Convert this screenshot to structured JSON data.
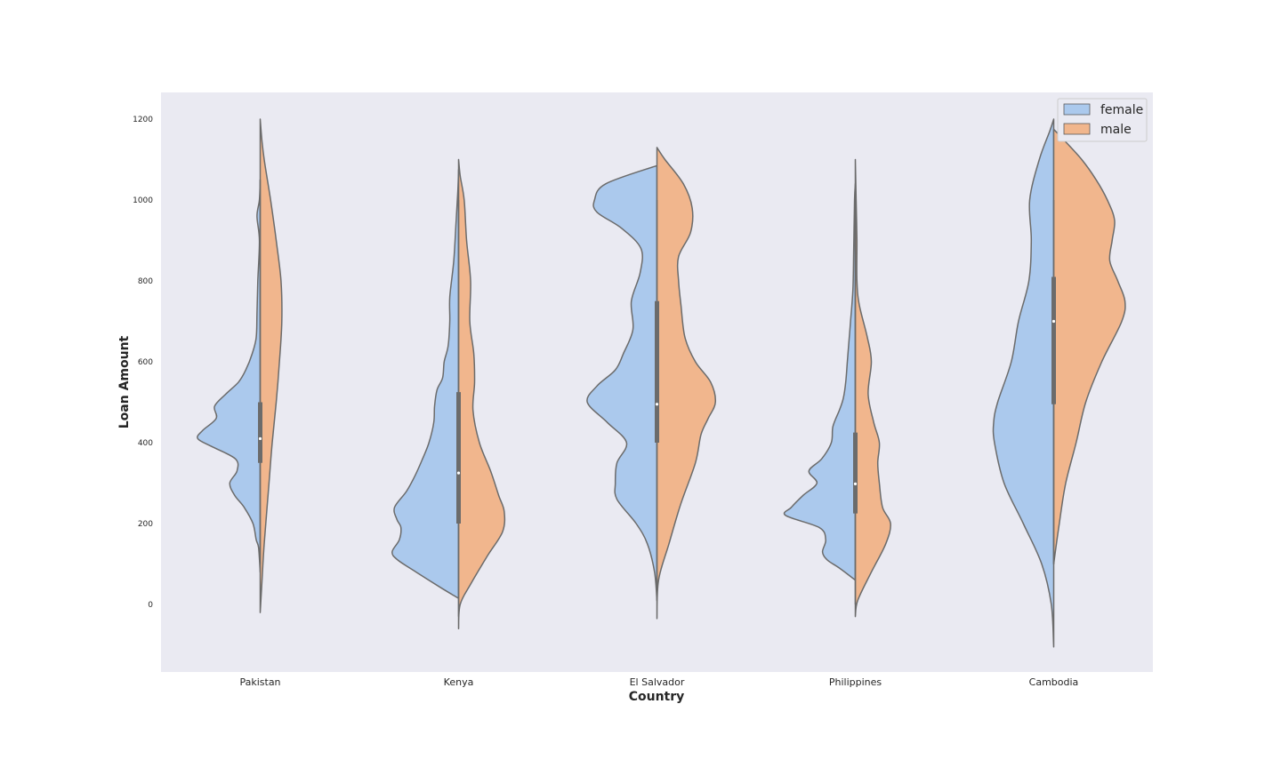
{
  "chart_data": {
    "type": "violin",
    "split": true,
    "xlabel": "Country",
    "ylabel": "Loan Amount",
    "ylim": [
      -165,
      1265
    ],
    "yticks": [
      0,
      200,
      400,
      600,
      800,
      1000,
      1200
    ],
    "grid": false,
    "legend_position": "top-right",
    "categories": [
      "Pakistan",
      "Kenya",
      "El Salvador",
      "Philippines",
      "Cambodia"
    ],
    "hue": [
      {
        "name": "female",
        "color": "#abc9ed"
      },
      {
        "name": "male",
        "color": "#f1b68d"
      }
    ],
    "violins": [
      {
        "category": "Pakistan",
        "box": {
          "q1": 350,
          "median": 410,
          "q3": 500,
          "whisker_low": 100,
          "whisker_high": 1050
        },
        "female": {
          "ymin": 80,
          "ymax": 1050,
          "density": [
            [
              80,
              0
            ],
            [
              140,
              0.02
            ],
            [
              160,
              0.05
            ],
            [
              200,
              0.09
            ],
            [
              240,
              0.2
            ],
            [
              270,
              0.32
            ],
            [
              300,
              0.38
            ],
            [
              330,
              0.29
            ],
            [
              360,
              0.31
            ],
            [
              390,
              0.6
            ],
            [
              410,
              0.78
            ],
            [
              430,
              0.72
            ],
            [
              460,
              0.55
            ],
            [
              490,
              0.57
            ],
            [
              520,
              0.43
            ],
            [
              550,
              0.27
            ],
            [
              580,
              0.18
            ],
            [
              620,
              0.1
            ],
            [
              660,
              0.05
            ],
            [
              720,
              0.04
            ],
            [
              800,
              0.03
            ],
            [
              900,
              0.01
            ],
            [
              960,
              0.04
            ],
            [
              1000,
              0.01
            ],
            [
              1050,
              0
            ]
          ]
        },
        "male": {
          "ymin": -20,
          "ymax": 1200,
          "density": [
            [
              -20,
              0
            ],
            [
              50,
              0.02
            ],
            [
              150,
              0.05
            ],
            [
              300,
              0.11
            ],
            [
              400,
              0.15
            ],
            [
              500,
              0.2
            ],
            [
              600,
              0.24
            ],
            [
              700,
              0.27
            ],
            [
              800,
              0.26
            ],
            [
              900,
              0.2
            ],
            [
              1000,
              0.13
            ],
            [
              1100,
              0.05
            ],
            [
              1150,
              0.02
            ],
            [
              1200,
              0
            ]
          ]
        }
      },
      {
        "category": "Kenya",
        "box": {
          "q1": 200,
          "median": 325,
          "q3": 525,
          "whisker_low": -30,
          "whisker_high": 1000
        },
        "female": {
          "ymin": 15,
          "ymax": 1075,
          "density": [
            [
              15,
              0
            ],
            [
              40,
              0.21
            ],
            [
              80,
              0.53
            ],
            [
              110,
              0.76
            ],
            [
              130,
              0.83
            ],
            [
              160,
              0.74
            ],
            [
              190,
              0.72
            ],
            [
              210,
              0.77
            ],
            [
              240,
              0.8
            ],
            [
              280,
              0.65
            ],
            [
              320,
              0.54
            ],
            [
              360,
              0.45
            ],
            [
              400,
              0.37
            ],
            [
              450,
              0.31
            ],
            [
              490,
              0.3
            ],
            [
              530,
              0.27
            ],
            [
              560,
              0.2
            ],
            [
              600,
              0.18
            ],
            [
              640,
              0.13
            ],
            [
              700,
              0.11
            ],
            [
              760,
              0.11
            ],
            [
              850,
              0.06
            ],
            [
              950,
              0.03
            ],
            [
              1020,
              0.01
            ],
            [
              1075,
              0
            ]
          ]
        },
        "male": {
          "ymin": -60,
          "ymax": 1100,
          "density": [
            [
              -60,
              0
            ],
            [
              0,
              0.02
            ],
            [
              50,
              0.15
            ],
            [
              120,
              0.36
            ],
            [
              180,
              0.55
            ],
            [
              230,
              0.57
            ],
            [
              270,
              0.5
            ],
            [
              330,
              0.4
            ],
            [
              400,
              0.26
            ],
            [
              480,
              0.18
            ],
            [
              550,
              0.2
            ],
            [
              620,
              0.19
            ],
            [
              700,
              0.14
            ],
            [
              800,
              0.15
            ],
            [
              900,
              0.1
            ],
            [
              1000,
              0.07
            ],
            [
              1060,
              0.02
            ],
            [
              1100,
              0
            ]
          ]
        }
      },
      {
        "category": "El Salvador",
        "box": {
          "q1": 400,
          "median": 495,
          "q3": 750,
          "whisker_low": 10,
          "whisker_high": 1000
        },
        "female": {
          "ymin": 10,
          "ymax": 1085,
          "density": [
            [
              10,
              0
            ],
            [
              80,
              0.03
            ],
            [
              150,
              0.12
            ],
            [
              200,
              0.26
            ],
            [
              260,
              0.5
            ],
            [
              300,
              0.52
            ],
            [
              350,
              0.5
            ],
            [
              400,
              0.38
            ],
            [
              450,
              0.62
            ],
            [
              500,
              0.87
            ],
            [
              540,
              0.75
            ],
            [
              580,
              0.52
            ],
            [
              620,
              0.42
            ],
            [
              680,
              0.3
            ],
            [
              750,
              0.32
            ],
            [
              820,
              0.21
            ],
            [
              880,
              0.2
            ],
            [
              930,
              0.44
            ],
            [
              970,
              0.75
            ],
            [
              1000,
              0.78
            ],
            [
              1040,
              0.64
            ],
            [
              1085,
              0
            ]
          ]
        },
        "male": {
          "ymin": -35,
          "ymax": 1130,
          "density": [
            [
              -35,
              0
            ],
            [
              60,
              0.02
            ],
            [
              150,
              0.15
            ],
            [
              250,
              0.3
            ],
            [
              350,
              0.48
            ],
            [
              420,
              0.55
            ],
            [
              460,
              0.64
            ],
            [
              500,
              0.73
            ],
            [
              550,
              0.67
            ],
            [
              600,
              0.48
            ],
            [
              660,
              0.35
            ],
            [
              740,
              0.3
            ],
            [
              800,
              0.27
            ],
            [
              860,
              0.27
            ],
            [
              920,
              0.42
            ],
            [
              980,
              0.44
            ],
            [
              1040,
              0.33
            ],
            [
              1100,
              0.1
            ],
            [
              1130,
              0
            ]
          ]
        }
      },
      {
        "category": "Philippines",
        "box": {
          "q1": 225,
          "median": 298,
          "q3": 425,
          "whisker_low": 0,
          "whisker_high": 1000
        },
        "female": {
          "ymin": 60,
          "ymax": 1040,
          "density": [
            [
              60,
              0
            ],
            [
              90,
              0.2
            ],
            [
              110,
              0.35
            ],
            [
              130,
              0.41
            ],
            [
              160,
              0.37
            ],
            [
              190,
              0.45
            ],
            [
              220,
              0.87
            ],
            [
              240,
              0.8
            ],
            [
              270,
              0.65
            ],
            [
              300,
              0.48
            ],
            [
              330,
              0.58
            ],
            [
              360,
              0.42
            ],
            [
              400,
              0.3
            ],
            [
              440,
              0.28
            ],
            [
              480,
              0.2
            ],
            [
              510,
              0.15
            ],
            [
              550,
              0.12
            ],
            [
              600,
              0.1
            ],
            [
              650,
              0.08
            ],
            [
              700,
              0.06
            ],
            [
              780,
              0.03
            ],
            [
              880,
              0.02
            ],
            [
              1000,
              0.01
            ],
            [
              1040,
              0
            ]
          ]
        },
        "male": {
          "ymin": -30,
          "ymax": 1100,
          "density": [
            [
              -30,
              0
            ],
            [
              10,
              0.03
            ],
            [
              80,
              0.2
            ],
            [
              150,
              0.38
            ],
            [
              200,
              0.44
            ],
            [
              240,
              0.34
            ],
            [
              300,
              0.3
            ],
            [
              350,
              0.28
            ],
            [
              400,
              0.3
            ],
            [
              450,
              0.23
            ],
            [
              520,
              0.16
            ],
            [
              600,
              0.2
            ],
            [
              660,
              0.15
            ],
            [
              740,
              0.05
            ],
            [
              800,
              0.02
            ],
            [
              900,
              0.02
            ],
            [
              1000,
              0.01
            ],
            [
              1100,
              0
            ]
          ]
        }
      },
      {
        "category": "Cambodia",
        "box": {
          "q1": 495,
          "median": 700,
          "q3": 810,
          "whisker_low": 100,
          "whisker_high": 1000
        },
        "female": {
          "ymin": -105,
          "ymax": 1200,
          "density": [
            [
              -105,
              0
            ],
            [
              0,
              0.03
            ],
            [
              100,
              0.15
            ],
            [
              200,
              0.38
            ],
            [
              300,
              0.62
            ],
            [
              400,
              0.74
            ],
            [
              450,
              0.75
            ],
            [
              500,
              0.7
            ],
            [
              600,
              0.53
            ],
            [
              700,
              0.44
            ],
            [
              800,
              0.31
            ],
            [
              900,
              0.28
            ],
            [
              1000,
              0.3
            ],
            [
              1100,
              0.18
            ],
            [
              1170,
              0.05
            ],
            [
              1200,
              0
            ]
          ]
        },
        "male": {
          "ymin": 100,
          "ymax": 1175,
          "density": [
            [
              100,
              0
            ],
            [
              200,
              0.07
            ],
            [
              300,
              0.15
            ],
            [
              400,
              0.28
            ],
            [
              500,
              0.4
            ],
            [
              600,
              0.6
            ],
            [
              700,
              0.85
            ],
            [
              750,
              0.89
            ],
            [
              800,
              0.8
            ],
            [
              850,
              0.7
            ],
            [
              900,
              0.73
            ],
            [
              950,
              0.76
            ],
            [
              1000,
              0.67
            ],
            [
              1050,
              0.53
            ],
            [
              1100,
              0.35
            ],
            [
              1150,
              0.12
            ],
            [
              1175,
              0
            ]
          ]
        }
      }
    ]
  }
}
